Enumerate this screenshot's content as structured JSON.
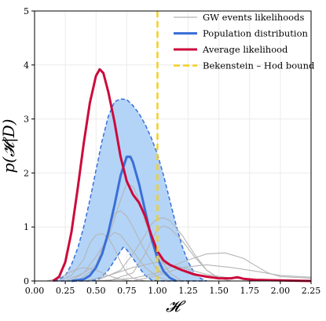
{
  "chart_data": {
    "type": "line",
    "xlabel": "𝓗",
    "ylabel": "p(𝓗|D)",
    "xlim": [
      0,
      2.25
    ],
    "ylim": [
      0,
      5
    ],
    "xticks": [
      0.0,
      0.25,
      0.5,
      0.75,
      1.0,
      1.25,
      1.5,
      1.75,
      2.0,
      2.25
    ],
    "xtick_labels": [
      "0.00",
      "0.25",
      "0.50",
      "0.75",
      "1.00",
      "1.25",
      "1.50",
      "1.75",
      "2.00",
      "2.25"
    ],
    "yticks": [
      0,
      1,
      2,
      3,
      4,
      5
    ],
    "ytick_labels": [
      "0",
      "1",
      "2",
      "3",
      "4",
      "5"
    ],
    "grid": true,
    "legend_position": "top-right",
    "legend": [
      {
        "label": "GW events likelihoods",
        "color": "#b5b5b5",
        "style": "thin-line"
      },
      {
        "label": "Population distribution",
        "color": "#3a6fd8",
        "style": "line"
      },
      {
        "label": "Average likelihood",
        "color": "#cc0a3c",
        "style": "line"
      },
      {
        "label": "Bekenstein – Hod bound",
        "color": "#f5cf1f",
        "style": "dashed"
      }
    ],
    "vertical_line": {
      "x": 1.0,
      "color": "#f5cf1f"
    },
    "band": {
      "color": "#b3d4f7",
      "edge_color": "#3a6fd8",
      "upper": [
        [
          0.16,
          0
        ],
        [
          0.2,
          0.03
        ],
        [
          0.25,
          0.1
        ],
        [
          0.3,
          0.3
        ],
        [
          0.35,
          0.6
        ],
        [
          0.4,
          1.0
        ],
        [
          0.45,
          1.5
        ],
        [
          0.5,
          2.05
        ],
        [
          0.55,
          2.6
        ],
        [
          0.6,
          3.05
        ],
        [
          0.65,
          3.32
        ],
        [
          0.7,
          3.37
        ],
        [
          0.75,
          3.36
        ],
        [
          0.8,
          3.25
        ],
        [
          0.85,
          3.1
        ],
        [
          0.9,
          2.9
        ],
        [
          0.95,
          2.65
        ],
        [
          1.0,
          2.35
        ],
        [
          1.05,
          1.95
        ],
        [
          1.1,
          1.5
        ],
        [
          1.15,
          1.05
        ],
        [
          1.2,
          0.65
        ],
        [
          1.25,
          0.35
        ],
        [
          1.3,
          0.15
        ],
        [
          1.35,
          0.05
        ],
        [
          1.4,
          0
        ]
      ],
      "lower": [
        [
          0.16,
          0
        ],
        [
          0.45,
          0
        ],
        [
          0.5,
          0.02
        ],
        [
          0.55,
          0.08
        ],
        [
          0.6,
          0.2
        ],
        [
          0.65,
          0.38
        ],
        [
          0.7,
          0.55
        ],
        [
          0.72,
          0.62
        ],
        [
          0.75,
          0.58
        ],
        [
          0.8,
          0.42
        ],
        [
          0.85,
          0.25
        ],
        [
          0.9,
          0.1
        ],
        [
          0.95,
          0.02
        ],
        [
          1.0,
          0
        ],
        [
          1.4,
          0
        ]
      ]
    },
    "series": [
      {
        "name": "Population distribution",
        "color": "#3a6fd8",
        "width": 3,
        "points": [
          [
            0.3,
            0
          ],
          [
            0.4,
            0.03
          ],
          [
            0.45,
            0.1
          ],
          [
            0.5,
            0.25
          ],
          [
            0.55,
            0.5
          ],
          [
            0.6,
            0.9
          ],
          [
            0.65,
            1.4
          ],
          [
            0.7,
            1.95
          ],
          [
            0.75,
            2.3
          ],
          [
            0.78,
            2.3
          ],
          [
            0.8,
            2.2
          ],
          [
            0.85,
            1.8
          ],
          [
            0.9,
            1.3
          ],
          [
            0.95,
            0.8
          ],
          [
            1.0,
            0.42
          ],
          [
            1.05,
            0.18
          ],
          [
            1.1,
            0.06
          ],
          [
            1.15,
            0
          ]
        ]
      },
      {
        "name": "Average likelihood",
        "color": "#cc0a3c",
        "width": 3,
        "points": [
          [
            0.15,
            0
          ],
          [
            0.2,
            0.08
          ],
          [
            0.25,
            0.35
          ],
          [
            0.3,
            0.9
          ],
          [
            0.35,
            1.7
          ],
          [
            0.4,
            2.55
          ],
          [
            0.45,
            3.3
          ],
          [
            0.5,
            3.8
          ],
          [
            0.53,
            3.92
          ],
          [
            0.56,
            3.85
          ],
          [
            0.6,
            3.5
          ],
          [
            0.65,
            2.95
          ],
          [
            0.7,
            2.3
          ],
          [
            0.75,
            1.85
          ],
          [
            0.8,
            1.6
          ],
          [
            0.85,
            1.45
          ],
          [
            0.9,
            1.2
          ],
          [
            0.95,
            0.85
          ],
          [
            1.0,
            0.55
          ],
          [
            1.05,
            0.38
          ],
          [
            1.1,
            0.3
          ],
          [
            1.2,
            0.2
          ],
          [
            1.3,
            0.12
          ],
          [
            1.4,
            0.08
          ],
          [
            1.5,
            0.05
          ],
          [
            1.6,
            0.05
          ],
          [
            1.65,
            0.07
          ],
          [
            1.7,
            0.04
          ],
          [
            1.8,
            0.02
          ],
          [
            2.0,
            0.01
          ],
          [
            2.25,
            0
          ]
        ]
      }
    ],
    "event_curves": [
      [
        [
          0.2,
          0
        ],
        [
          0.3,
          0.1
        ],
        [
          0.4,
          0.4
        ],
        [
          0.45,
          0.7
        ],
        [
          0.5,
          0.85
        ],
        [
          0.55,
          0.88
        ],
        [
          0.6,
          0.8
        ],
        [
          0.65,
          0.6
        ],
        [
          0.7,
          0.35
        ],
        [
          0.75,
          0.15
        ],
        [
          0.8,
          0.05
        ],
        [
          0.9,
          0
        ]
      ],
      [
        [
          0.25,
          0
        ],
        [
          0.4,
          0.15
        ],
        [
          0.5,
          0.45
        ],
        [
          0.6,
          0.8
        ],
        [
          0.65,
          0.9
        ],
        [
          0.7,
          0.85
        ],
        [
          0.8,
          0.55
        ],
        [
          0.9,
          0.25
        ],
        [
          1.0,
          0.08
        ],
        [
          1.1,
          0
        ]
      ],
      [
        [
          0.35,
          0
        ],
        [
          0.5,
          0.25
        ],
        [
          0.6,
          0.8
        ],
        [
          0.7,
          1.5
        ],
        [
          0.75,
          1.8
        ],
        [
          0.8,
          1.75
        ],
        [
          0.85,
          1.5
        ],
        [
          0.9,
          1.1
        ],
        [
          1.0,
          0.5
        ],
        [
          1.1,
          0.15
        ],
        [
          1.2,
          0
        ]
      ],
      [
        [
          0.3,
          0
        ],
        [
          0.5,
          0.3
        ],
        [
          0.6,
          0.9
        ],
        [
          0.65,
          1.25
        ],
        [
          0.7,
          1.3
        ],
        [
          0.75,
          1.2
        ],
        [
          0.8,
          1.0
        ],
        [
          0.9,
          0.55
        ],
        [
          1.0,
          0.2
        ],
        [
          1.1,
          0.05
        ],
        [
          1.2,
          0
        ]
      ],
      [
        [
          0.5,
          0
        ],
        [
          0.7,
          0.2
        ],
        [
          0.8,
          0.5
        ],
        [
          0.9,
          0.85
        ],
        [
          0.95,
          1.05
        ],
        [
          1.0,
          1.15
        ],
        [
          1.05,
          1.17
        ],
        [
          1.1,
          1.12
        ],
        [
          1.2,
          0.85
        ],
        [
          1.3,
          0.5
        ],
        [
          1.4,
          0.2
        ],
        [
          1.5,
          0.05
        ],
        [
          1.6,
          0
        ]
      ],
      [
        [
          0.6,
          0
        ],
        [
          0.8,
          0.15
        ],
        [
          0.9,
          0.5
        ],
        [
          0.95,
          0.75
        ],
        [
          1.0,
          0.95
        ],
        [
          1.05,
          1.02
        ],
        [
          1.1,
          0.98
        ],
        [
          1.2,
          0.75
        ],
        [
          1.3,
          0.45
        ],
        [
          1.4,
          0.2
        ],
        [
          1.5,
          0.05
        ],
        [
          1.6,
          0
        ]
      ],
      [
        [
          0.5,
          0
        ],
        [
          0.8,
          0.05
        ],
        [
          1.0,
          0.15
        ],
        [
          1.2,
          0.35
        ],
        [
          1.4,
          0.5
        ],
        [
          1.55,
          0.52
        ],
        [
          1.7,
          0.42
        ],
        [
          1.8,
          0.28
        ],
        [
          1.9,
          0.15
        ],
        [
          2.0,
          0.08
        ],
        [
          2.25,
          0.05
        ]
      ],
      [
        [
          0.8,
          0
        ],
        [
          1.0,
          0.1
        ],
        [
          1.2,
          0.25
        ],
        [
          1.4,
          0.3
        ],
        [
          1.6,
          0.25
        ],
        [
          1.8,
          0.18
        ],
        [
          2.0,
          0.1
        ],
        [
          2.25,
          0.07
        ]
      ],
      [
        [
          0.4,
          0
        ],
        [
          0.6,
          0.1
        ],
        [
          0.8,
          0.25
        ],
        [
          1.0,
          0.35
        ],
        [
          1.2,
          0.25
        ],
        [
          1.4,
          0.12
        ],
        [
          1.6,
          0.05
        ],
        [
          2.0,
          0.02
        ],
        [
          2.25,
          0.01
        ]
      ],
      [
        [
          0.1,
          0
        ],
        [
          0.2,
          0.05
        ],
        [
          0.3,
          0.18
        ],
        [
          0.4,
          0.25
        ],
        [
          0.5,
          0.2
        ],
        [
          0.6,
          0.1
        ],
        [
          0.7,
          0.03
        ],
        [
          0.8,
          0
        ]
      ]
    ]
  }
}
